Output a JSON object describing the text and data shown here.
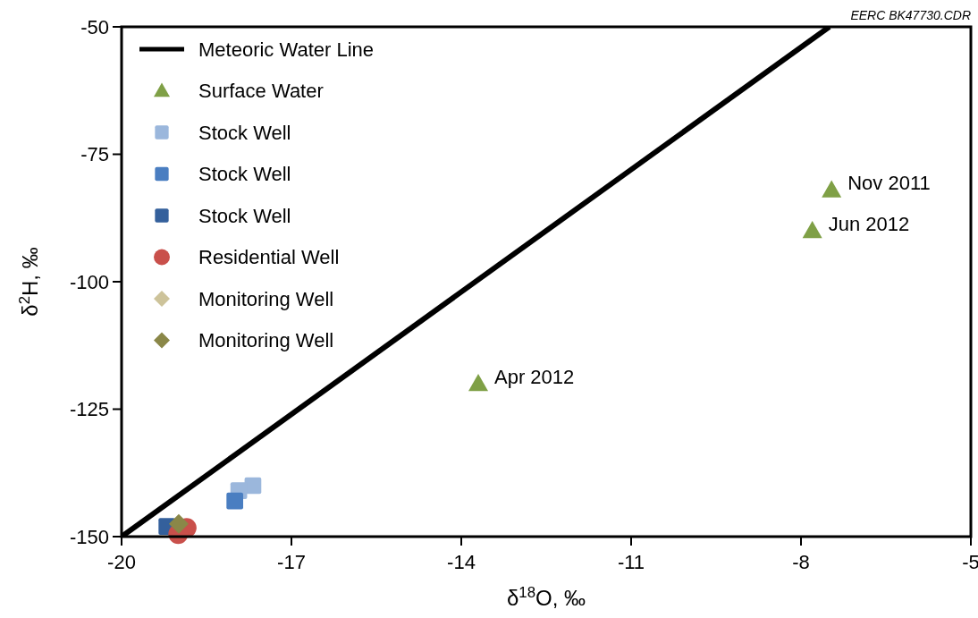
{
  "chart_data": {
    "type": "scatter",
    "xlabel": "δ$^{18}$O, ‰",
    "ylabel": "δ$^{2}$H, ‰",
    "xlim": [
      -20,
      -5
    ],
    "xticks": [
      -20,
      -17,
      -14,
      -11,
      -8,
      -5
    ],
    "ylim": [
      -150,
      -50
    ],
    "yticks": [
      -150,
      -125,
      -100,
      -75,
      -50
    ],
    "grid": false,
    "legend": "top left",
    "series": [
      {
        "name": "Meteoric Water Line",
        "type": "line",
        "color": "#000000",
        "x": [
          -20,
          -7.5
        ],
        "values": [
          -150,
          -50
        ],
        "line_style": "solid"
      },
      {
        "name": "Surface Water",
        "color": "#7fa046",
        "x": [
          -7.46,
          -7.8,
          -13.7
        ],
        "values": [
          -82,
          -90,
          -120
        ],
        "marker": "triangle"
      },
      {
        "name": "Stock Well",
        "color": "#9bb7dc",
        "x": [
          -17.68,
          -17.93
        ],
        "values": [
          -140,
          -141
        ],
        "marker": "square"
      },
      {
        "name": "Stock Well",
        "color": "#4a7ec1",
        "x": [
          -18.0
        ],
        "values": [
          -143
        ],
        "marker": "square"
      },
      {
        "name": "Stock Well",
        "color": "#34609c",
        "x": [
          -19.2
        ],
        "values": [
          -148
        ],
        "marker": "square"
      },
      {
        "name": "Residential Well",
        "color": "#c9504b",
        "x": [
          -18.85,
          -19.0
        ],
        "values": [
          -148.3,
          -149.5
        ],
        "marker": "circle"
      },
      {
        "name": "Monitoring Well",
        "color": "#cdc39a",
        "x": [
          null
        ],
        "values": [
          null
        ],
        "marker": "diamond"
      },
      {
        "name": "Monitoring Well",
        "color": "#8a8748",
        "x": [
          -18.99
        ],
        "values": [
          -147.5
        ],
        "marker": "diamond"
      }
    ],
    "annotations": [
      {
        "text": "Nov 2011",
        "x": -7.46,
        "y": -82
      },
      {
        "text": "Jun 2012",
        "x": -7.8,
        "y": -90
      },
      {
        "text": "Apr 2012",
        "x": -13.7,
        "y": -120
      },
      "EERC BK47730.CDR"
    ]
  }
}
